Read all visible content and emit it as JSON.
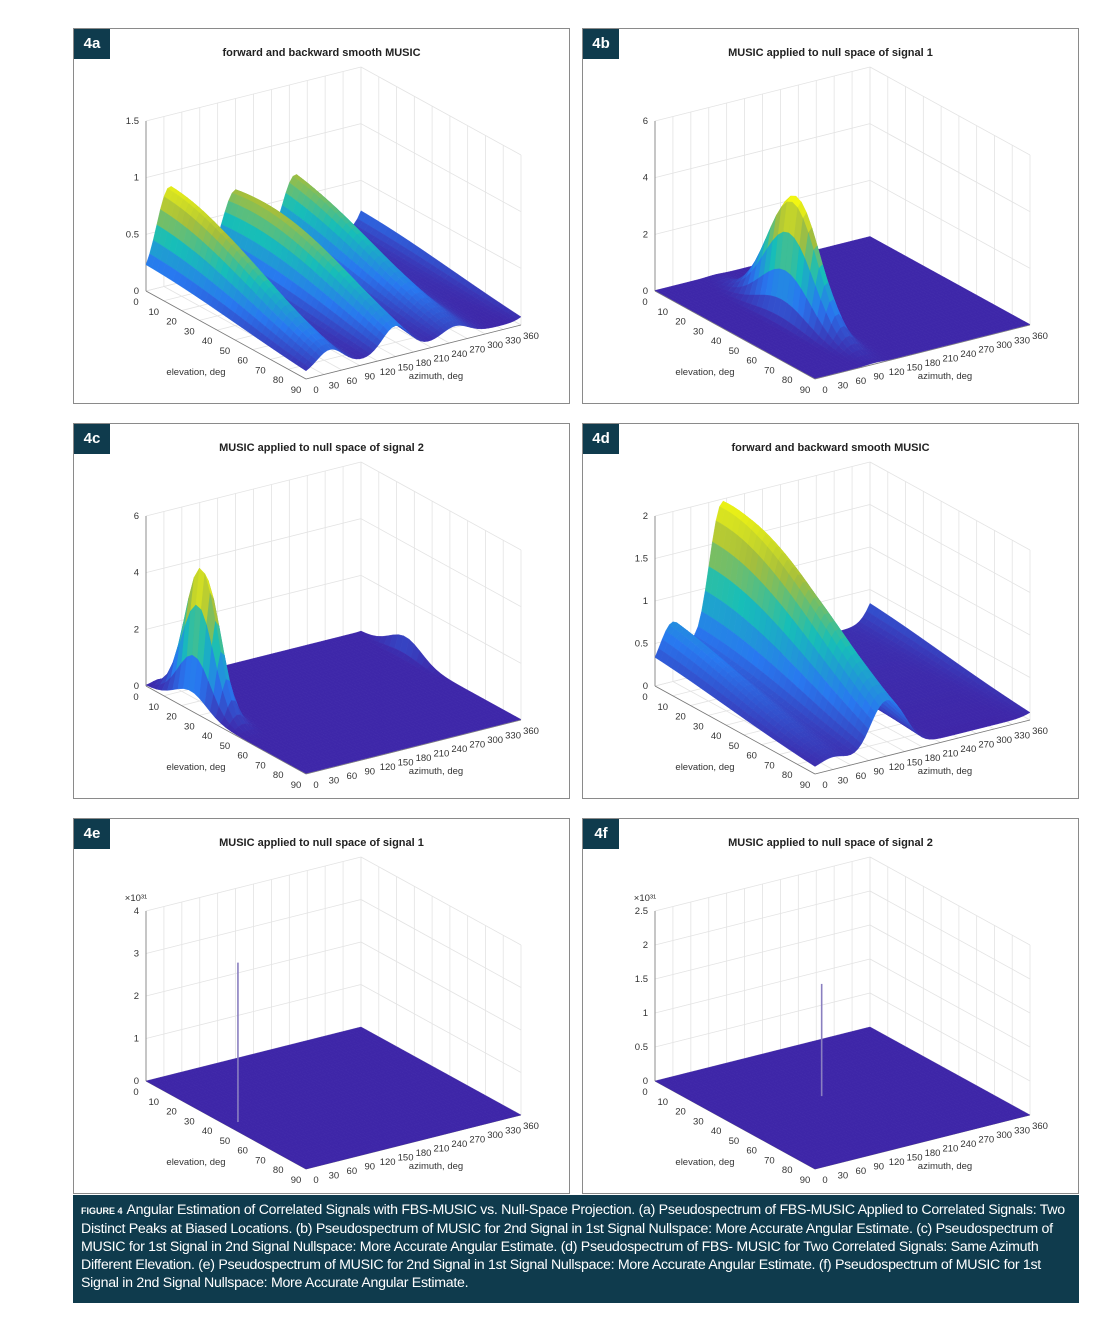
{
  "figure_label": "FIGURE 4",
  "caption": "Angular Estimation of Correlated Signals with FBS-MUSIC vs. Null-Space Projection. (a) Pseudospectrum of FBS-MUSIC Applied to Correlated Signals: Two Distinct Peaks at Biased Locations. (b) Pseudospectrum of MUSIC for 2nd Signal in 1st Signal Nullspace: More Accurate Angular Estimate. (c) Pseudospectrum of MUSIC for 1st Signal in 2nd Signal Nullspace: More Accurate Angular Estimate. (d) Pseudospectrum of FBS- MUSIC for Two Correlated Signals: Same Azimuth Different Elevation. (e) Pseudospectrum of MUSIC for 2nd Signal in 1st Signal Nullspace: More Accurate Angular Estimate. (f) Pseudospectrum of MUSIC for 1st Signal in 2nd Signal Nullspace: More Accurate Angular Estimate.",
  "colors": {
    "badge": "#0f3b4d",
    "caption_bg": "#0f3b4d",
    "colormap": "parula",
    "surface_low": "#3e26a8",
    "surface_high": "#f9fb0e"
  },
  "chart_data": [
    {
      "id": "4a",
      "type": "surface",
      "title": "forward and backward smooth MUSIC",
      "xlabel": "elevation, deg",
      "ylabel": "azimuth, deg",
      "zlabel": "",
      "xlim": [
        0,
        90
      ],
      "ylim": [
        0,
        360
      ],
      "zlim": [
        0,
        1.5
      ],
      "xticks": [
        0,
        10,
        20,
        30,
        40,
        50,
        60,
        70,
        80,
        90
      ],
      "yticks": [
        0,
        30,
        60,
        90,
        120,
        150,
        180,
        210,
        240,
        270,
        300,
        330,
        360
      ],
      "zticks": [
        "0",
        "0.5",
        "1",
        "1.5"
      ],
      "zticks_values": [
        0,
        0.5,
        1,
        1.5
      ],
      "z_multiplier": "",
      "baseline": 0.08,
      "peaks": [
        {
          "elevation": 15,
          "azimuth": 40,
          "value": 0.82
        },
        {
          "elevation": 35,
          "azimuth": 150,
          "value": 0.75
        },
        {
          "elevation": 5,
          "azimuth": 250,
          "value": 0.62
        }
      ],
      "grid": true
    },
    {
      "id": "4b",
      "type": "surface",
      "title": "MUSIC applied to null space of signal 1",
      "xlabel": "elevation, deg",
      "ylabel": "azimuth, deg",
      "zlabel": "",
      "xlim": [
        0,
        90
      ],
      "ylim": [
        0,
        360
      ],
      "zlim": [
        0,
        6
      ],
      "xticks": [
        0,
        10,
        20,
        30,
        40,
        50,
        60,
        70,
        80,
        90
      ],
      "yticks": [
        0,
        30,
        60,
        90,
        120,
        150,
        180,
        210,
        240,
        270,
        300,
        330,
        360
      ],
      "zticks": [
        "0",
        "2",
        "4",
        "6"
      ],
      "zticks_values": [
        0,
        2,
        4,
        6
      ],
      "z_multiplier": "",
      "baseline": 0.02,
      "peaks": [
        {
          "elevation": 45,
          "azimuth": 100,
          "value": 4.4
        }
      ],
      "grid": true
    },
    {
      "id": "4c",
      "type": "surface",
      "title": "MUSIC applied to null space of signal 2",
      "xlabel": "elevation, deg",
      "ylabel": "azimuth, deg",
      "zlabel": "",
      "xlim": [
        0,
        90
      ],
      "ylim": [
        0,
        360
      ],
      "zlim": [
        0,
        6
      ],
      "xticks": [
        0,
        10,
        20,
        30,
        40,
        50,
        60,
        70,
        80,
        90
      ],
      "yticks": [
        0,
        30,
        60,
        90,
        120,
        150,
        180,
        210,
        240,
        270,
        300,
        330,
        360
      ],
      "zticks": [
        "0",
        "2",
        "4",
        "6"
      ],
      "zticks_values": [
        0,
        2,
        4,
        6
      ],
      "z_multiplier": "",
      "baseline": 0.02,
      "peaks": [
        {
          "elevation": 25,
          "azimuth": 20,
          "value": 5.0
        }
      ],
      "grid": true
    },
    {
      "id": "4d",
      "type": "surface",
      "title": "forward and backward smooth MUSIC",
      "xlabel": "elevation, deg",
      "ylabel": "azimuth, deg",
      "zlabel": "",
      "xlim": [
        0,
        90
      ],
      "ylim": [
        0,
        360
      ],
      "zlim": [
        0,
        2
      ],
      "xticks": [
        0,
        10,
        20,
        30,
        40,
        50,
        60,
        70,
        80,
        90
      ],
      "yticks": [
        0,
        30,
        60,
        90,
        120,
        150,
        180,
        210,
        240,
        270,
        300,
        330,
        360
      ],
      "zticks": [
        "0",
        "0.5",
        "1",
        "1.5",
        "2"
      ],
      "zticks_values": [
        0,
        0.5,
        1,
        1.5,
        2
      ],
      "z_multiplier": "",
      "baseline": 0.1,
      "peaks": [
        {
          "elevation": 20,
          "azimuth": 110,
          "value": 1.75
        },
        {
          "elevation": 55,
          "azimuth": 140,
          "value": 0.75
        },
        {
          "elevation": 0,
          "azimuth": 30,
          "value": 0.6
        }
      ],
      "grid": true
    },
    {
      "id": "4e",
      "type": "surface",
      "title": "MUSIC applied to null space of signal 1",
      "xlabel": "elevation, deg",
      "ylabel": "azimuth, deg",
      "zlabel": "",
      "xlim": [
        0,
        90
      ],
      "ylim": [
        0,
        360
      ],
      "zlim": [
        0,
        4
      ],
      "xticks": [
        0,
        10,
        20,
        30,
        40,
        50,
        60,
        70,
        80,
        90
      ],
      "yticks": [
        0,
        30,
        60,
        90,
        120,
        150,
        180,
        210,
        240,
        270,
        300,
        330,
        360
      ],
      "zticks": [
        "0",
        "1",
        "2",
        "3",
        "4"
      ],
      "zticks_values": [
        0,
        1,
        2,
        3,
        4
      ],
      "z_multiplier": "×10³¹",
      "baseline": 0,
      "peaks": [
        {
          "elevation": 45,
          "azimuth": 20,
          "value": 3.75,
          "spike": true
        }
      ],
      "grid": true
    },
    {
      "id": "4f",
      "type": "surface",
      "title": "MUSIC applied to null space of signal 2",
      "xlabel": "elevation, deg",
      "ylabel": "azimuth, deg",
      "zlabel": "",
      "xlim": [
        0,
        90
      ],
      "ylim": [
        0,
        360
      ],
      "zlim": [
        0,
        2.5
      ],
      "xticks": [
        0,
        10,
        20,
        30,
        40,
        50,
        60,
        70,
        80,
        90
      ],
      "yticks": [
        0,
        30,
        60,
        90,
        120,
        150,
        180,
        210,
        240,
        270,
        300,
        330,
        360
      ],
      "zticks": [
        "0",
        "0.5",
        "1",
        "1.5",
        "2",
        "2.5"
      ],
      "zticks_values": [
        0,
        0.5,
        1,
        1.5,
        2,
        2.5
      ],
      "z_multiplier": "×10³¹",
      "baseline": 0,
      "peaks": [
        {
          "elevation": 40,
          "azimuth": 160,
          "value": 1.65,
          "spike": true
        }
      ],
      "grid": true
    }
  ]
}
